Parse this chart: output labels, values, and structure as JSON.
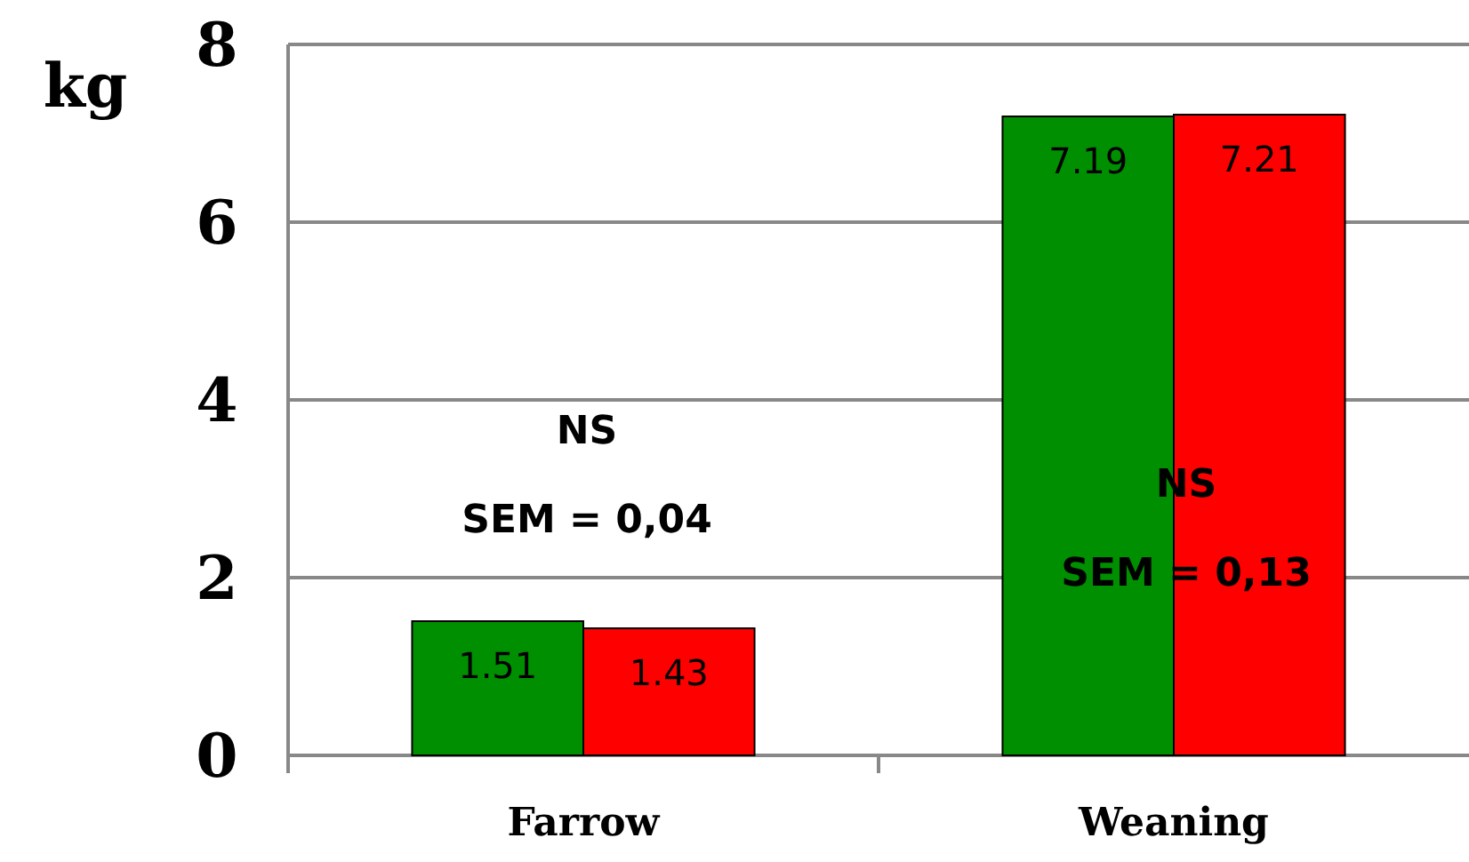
{
  "chart_data": {
    "type": "bar",
    "ylabel": "kg",
    "categories": [
      "Farrow",
      "Weaning"
    ],
    "series": [
      {
        "color": "#008f00",
        "values": [
          1.51,
          7.19
        ]
      },
      {
        "color": "#ff0000",
        "values": [
          1.43,
          7.21
        ]
      }
    ],
    "ylim": [
      0,
      8
    ],
    "yticks": [
      0,
      2,
      4,
      6,
      8
    ],
    "grid": "y",
    "data_labels": true,
    "annotations": [
      "NS",
      "SEM = 0,04",
      "NS",
      "SEM = 0,13"
    ]
  }
}
